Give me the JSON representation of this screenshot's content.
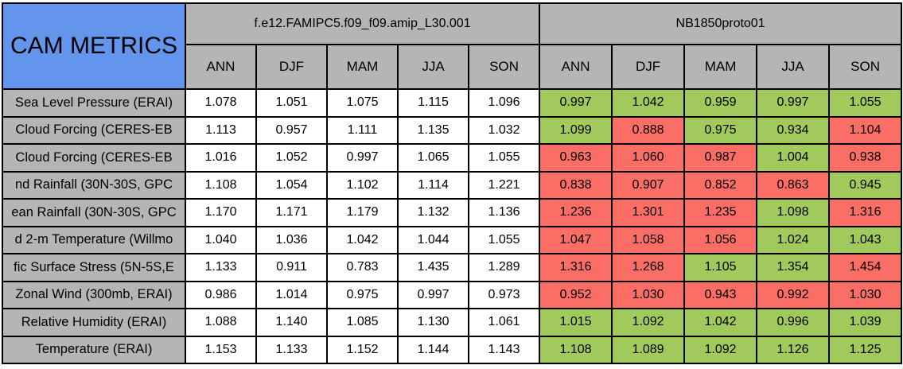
{
  "colors": {
    "title_blue": "#6495ED",
    "header_gray": "#B5B5B5",
    "good_green": "#A2C95C",
    "bad_red": "#FA6E66",
    "neutral_white": "#FFFFFF",
    "border_black": "#000000"
  },
  "chart_data": {
    "type": "table",
    "title": "CAM METRICS",
    "columns": [
      "ANN",
      "DJF",
      "MAM",
      "JJA",
      "SON"
    ],
    "groups": [
      {
        "name": "f.e12.FAMIPC5.f09_f09.amip_L30.001",
        "cell_style": "white"
      },
      {
        "name": "NB1850proto01",
        "cell_style": "conditional-green-red"
      }
    ],
    "legend_position": "none",
    "grid": true,
    "rows": [
      {
        "label": "Sea Level Pressure (ERAI)",
        "values": [
          [
            "1.078",
            "1.051",
            "1.075",
            "1.115",
            "1.096"
          ],
          [
            "0.997",
            "1.042",
            "0.959",
            "0.997",
            "1.055"
          ]
        ],
        "colors": [
          [
            "white",
            "white",
            "white",
            "white",
            "white"
          ],
          [
            "green",
            "green",
            "green",
            "green",
            "green"
          ]
        ]
      },
      {
        "label": "Cloud Forcing (CERES-EB",
        "values": [
          [
            "1.113",
            "0.957",
            "1.111",
            "1.135",
            "1.032"
          ],
          [
            "1.099",
            "0.888",
            "0.975",
            "0.934",
            "1.104"
          ]
        ],
        "colors": [
          [
            "white",
            "white",
            "white",
            "white",
            "white"
          ],
          [
            "green",
            "red",
            "green",
            "green",
            "red"
          ]
        ]
      },
      {
        "label": "Cloud Forcing (CERES-EB",
        "values": [
          [
            "1.016",
            "1.052",
            "0.997",
            "1.065",
            "1.055"
          ],
          [
            "0.963",
            "1.060",
            "0.987",
            "1.004",
            "0.938"
          ]
        ],
        "colors": [
          [
            "white",
            "white",
            "white",
            "white",
            "white"
          ],
          [
            "red",
            "red",
            "red",
            "green",
            "red"
          ]
        ]
      },
      {
        "label": "nd Rainfall (30N-30S, GPC",
        "values": [
          [
            "1.108",
            "1.054",
            "1.102",
            "1.114",
            "1.221"
          ],
          [
            "0.838",
            "0.907",
            "0.852",
            "0.863",
            "0.945"
          ]
        ],
        "colors": [
          [
            "white",
            "white",
            "white",
            "white",
            "white"
          ],
          [
            "red",
            "red",
            "red",
            "red",
            "green"
          ]
        ]
      },
      {
        "label": "ean Rainfall (30N-30S, GPC",
        "values": [
          [
            "1.170",
            "1.171",
            "1.179",
            "1.132",
            "1.136"
          ],
          [
            "1.236",
            "1.301",
            "1.235",
            "1.098",
            "1.316"
          ]
        ],
        "colors": [
          [
            "white",
            "white",
            "white",
            "white",
            "white"
          ],
          [
            "red",
            "red",
            "red",
            "green",
            "red"
          ]
        ]
      },
      {
        "label": "d 2-m Temperature (Willmo",
        "values": [
          [
            "1.040",
            "1.036",
            "1.042",
            "1.044",
            "1.055"
          ],
          [
            "1.047",
            "1.058",
            "1.056",
            "1.024",
            "1.043"
          ]
        ],
        "colors": [
          [
            "white",
            "white",
            "white",
            "white",
            "white"
          ],
          [
            "red",
            "red",
            "red",
            "green",
            "green"
          ]
        ]
      },
      {
        "label": "fic Surface Stress (5N-5S,E",
        "values": [
          [
            "1.133",
            "0.911",
            "0.783",
            "1.435",
            "1.289"
          ],
          [
            "1.316",
            "1.268",
            "1.105",
            "1.354",
            "1.454"
          ]
        ],
        "colors": [
          [
            "white",
            "white",
            "white",
            "white",
            "white"
          ],
          [
            "red",
            "red",
            "green",
            "green",
            "red"
          ]
        ]
      },
      {
        "label": "Zonal Wind (300mb, ERAI)",
        "values": [
          [
            "0.986",
            "1.014",
            "0.975",
            "0.997",
            "0.973"
          ],
          [
            "0.952",
            "1.030",
            "0.943",
            "0.992",
            "1.030"
          ]
        ],
        "colors": [
          [
            "white",
            "white",
            "white",
            "white",
            "white"
          ],
          [
            "red",
            "red",
            "red",
            "red",
            "red"
          ]
        ]
      },
      {
        "label": "Relative Humidity (ERAI)",
        "values": [
          [
            "1.088",
            "1.140",
            "1.085",
            "1.130",
            "1.061"
          ],
          [
            "1.015",
            "1.092",
            "1.042",
            "0.996",
            "1.039"
          ]
        ],
        "colors": [
          [
            "white",
            "white",
            "white",
            "white",
            "white"
          ],
          [
            "green",
            "green",
            "green",
            "green",
            "green"
          ]
        ]
      },
      {
        "label": "Temperature (ERAI)",
        "values": [
          [
            "1.153",
            "1.133",
            "1.152",
            "1.144",
            "1.143"
          ],
          [
            "1.108",
            "1.089",
            "1.092",
            "1.126",
            "1.125"
          ]
        ],
        "colors": [
          [
            "white",
            "white",
            "white",
            "white",
            "white"
          ],
          [
            "green",
            "green",
            "green",
            "green",
            "green"
          ]
        ]
      }
    ]
  }
}
